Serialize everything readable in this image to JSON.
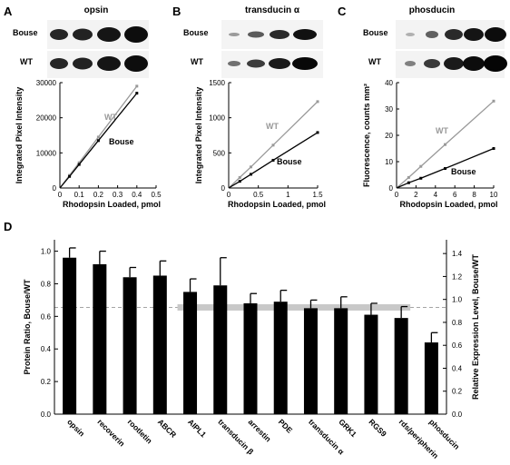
{
  "panels": [
    {
      "letter": "A",
      "title": "opsin",
      "row_labels": [
        "Bouse",
        "WT"
      ]
    },
    {
      "letter": "B",
      "title": "transducin α",
      "row_labels": [
        "Bouse",
        "WT"
      ]
    },
    {
      "letter": "C",
      "title": "phosducin",
      "row_labels": [
        "Bouse",
        "WT"
      ]
    },
    {
      "letter": "D"
    }
  ],
  "colors": {
    "wt": "#999999",
    "bouse": "#000000",
    "band": "#1c1c1c",
    "bar": "#000000",
    "ref_band": "#c8c8c8"
  },
  "chart_data": [
    {
      "type": "line",
      "xlabel": "Rhodopsin Loaded, pmol",
      "ylabel": "Integrated Pixel Intensity",
      "xlim": [
        0,
        0.5
      ],
      "ylim": [
        0,
        30000
      ],
      "xticks": [
        "0",
        "0.1",
        "0.2",
        "0.3",
        "0.4",
        "0.5"
      ],
      "yticks": [
        "0",
        "10000",
        "20000",
        "30000"
      ],
      "series": [
        {
          "name": "WT",
          "x": [
            0.05,
            0.1,
            0.2,
            0.4
          ],
          "y": [
            3600,
            7200,
            14500,
            29000
          ]
        },
        {
          "name": "Bouse",
          "x": [
            0.05,
            0.1,
            0.2,
            0.4
          ],
          "y": [
            3300,
            6700,
            13500,
            27000
          ]
        }
      ]
    },
    {
      "type": "line",
      "xlabel": "Rhodopsin Loaded, pmol",
      "ylabel": "Integrated Pixel Intensity",
      "xlim": [
        0,
        1.5
      ],
      "ylim": [
        0,
        1500
      ],
      "xticks": [
        "0",
        "0.5",
        "1",
        "1.5"
      ],
      "yticks": [
        "0",
        "500",
        "1000",
        "1500"
      ],
      "series": [
        {
          "name": "WT",
          "x": [
            0.1875,
            0.375,
            0.75,
            1.5
          ],
          "y": [
            150,
            300,
            610,
            1230
          ]
        },
        {
          "name": "Bouse",
          "x": [
            0.1875,
            0.375,
            0.75,
            1.5
          ],
          "y": [
            95,
            195,
            395,
            790
          ]
        }
      ]
    },
    {
      "type": "line",
      "xlabel": "Rhodopsin Loaded, pmol",
      "ylabel": "Fluorescence, counts mm²",
      "xlim": [
        0,
        10
      ],
      "ylim": [
        0,
        40
      ],
      "xticks": [
        "0",
        "2",
        "4",
        "6",
        "8",
        "10"
      ],
      "yticks": [
        "0",
        "10",
        "20",
        "30",
        "40"
      ],
      "series": [
        {
          "name": "WT",
          "x": [
            1.25,
            2.5,
            5,
            10
          ],
          "y": [
            4,
            8.2,
            16.5,
            33
          ]
        },
        {
          "name": "Bouse",
          "x": [
            1.25,
            2.5,
            5,
            10
          ],
          "y": [
            2,
            3.7,
            7.4,
            15
          ]
        }
      ]
    },
    {
      "type": "bar",
      "categories": [
        "opsin",
        "recoverin",
        "rootletin",
        "ABCR",
        "AIPL1",
        "transducin β",
        "arrestin",
        "PDE",
        "transducin α",
        "GRK1",
        "RGS9",
        "rds/peripherin",
        "phosducin"
      ],
      "values": [
        0.96,
        0.92,
        0.84,
        0.85,
        0.75,
        0.79,
        0.68,
        0.69,
        0.65,
        0.65,
        0.61,
        0.59,
        0.44
      ],
      "errors": [
        0.06,
        0.08,
        0.06,
        0.09,
        0.08,
        0.17,
        0.06,
        0.07,
        0.05,
        0.07,
        0.07,
        0.07,
        0.06
      ],
      "ylabel": "Protein Ratio, Bouse/WT",
      "ylim": [
        0,
        1.07
      ],
      "yticks": [
        "0.0",
        "0.2",
        "0.4",
        "0.6",
        "0.8",
        "1.0"
      ],
      "ylabel_right": "Relative Expression Level, Bouse/WT",
      "yticks_right": [
        "0.0",
        "0.2",
        "0.4",
        "0.6",
        "0.8",
        "1.0",
        "1.2",
        "1.4"
      ],
      "reference_line": 0.655
    }
  ]
}
